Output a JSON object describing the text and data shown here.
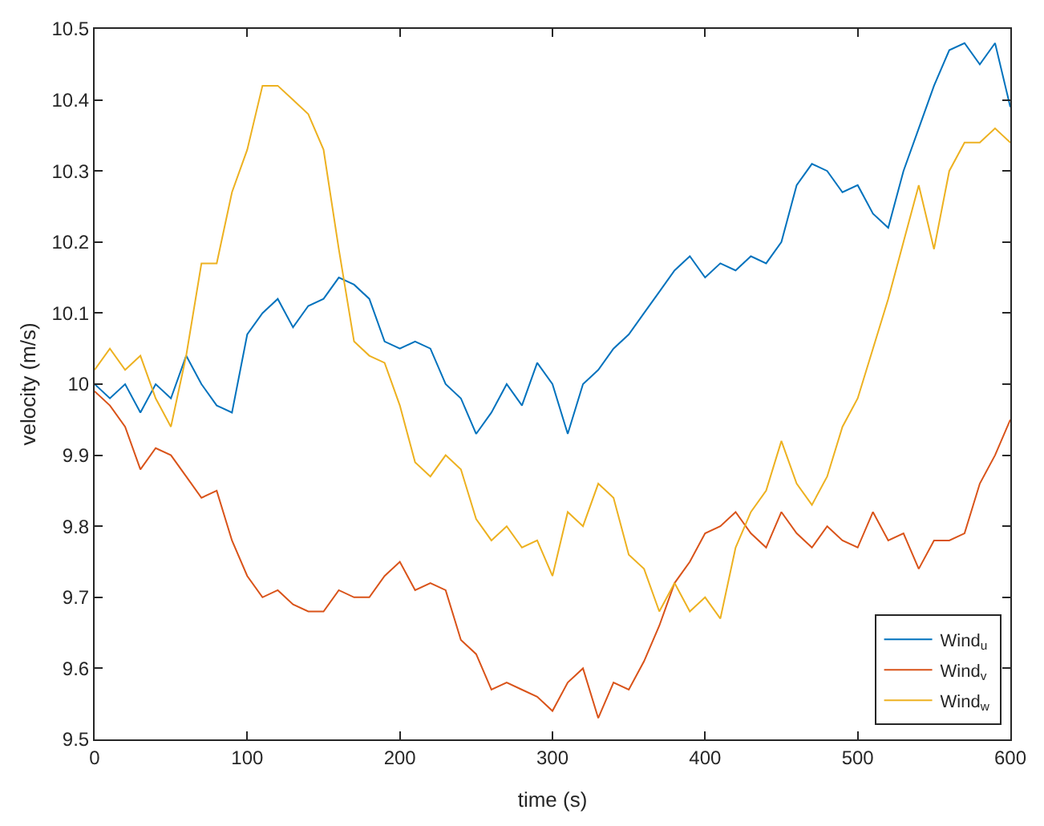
{
  "chart_data": {
    "type": "line",
    "xlabel": "time (s)",
    "ylabel": "velocity (m/s)",
    "x": [
      0,
      10,
      20,
      30,
      40,
      50,
      60,
      70,
      80,
      90,
      100,
      110,
      120,
      130,
      140,
      150,
      160,
      170,
      180,
      190,
      200,
      210,
      220,
      230,
      240,
      250,
      260,
      270,
      280,
      290,
      300,
      310,
      320,
      330,
      340,
      350,
      360,
      370,
      380,
      390,
      400,
      410,
      420,
      430,
      440,
      450,
      460,
      470,
      480,
      490,
      500,
      510,
      520,
      530,
      540,
      550,
      560,
      570,
      580,
      590,
      600
    ],
    "series": [
      {
        "name": "Wind$_{u}$",
        "color": "#0072bd",
        "values": [
          10.0,
          9.98,
          10.0,
          9.96,
          10.0,
          9.98,
          10.04,
          10.0,
          9.97,
          9.96,
          10.07,
          10.1,
          10.12,
          10.08,
          10.11,
          10.12,
          10.15,
          10.14,
          10.12,
          10.06,
          10.05,
          10.06,
          10.05,
          10.0,
          9.98,
          9.93,
          9.96,
          10.0,
          9.97,
          10.03,
          10.0,
          9.93,
          10.0,
          10.02,
          10.05,
          10.07,
          10.1,
          10.13,
          10.16,
          10.18,
          10.15,
          10.17,
          10.16,
          10.18,
          10.17,
          10.2,
          10.28,
          10.31,
          10.3,
          10.27,
          10.28,
          10.24,
          10.22,
          10.3,
          10.36,
          10.42,
          10.47,
          10.48,
          10.45,
          10.48,
          10.39
        ]
      },
      {
        "name": "Wind$_{v}$",
        "color": "#d95319",
        "values": [
          9.99,
          9.97,
          9.94,
          9.88,
          9.91,
          9.9,
          9.87,
          9.84,
          9.85,
          9.78,
          9.73,
          9.7,
          9.71,
          9.69,
          9.68,
          9.68,
          9.71,
          9.7,
          9.7,
          9.73,
          9.75,
          9.71,
          9.72,
          9.71,
          9.64,
          9.62,
          9.57,
          9.58,
          9.57,
          9.56,
          9.54,
          9.58,
          9.6,
          9.53,
          9.58,
          9.57,
          9.61,
          9.66,
          9.72,
          9.75,
          9.79,
          9.8,
          9.82,
          9.79,
          9.77,
          9.82,
          9.79,
          9.77,
          9.8,
          9.78,
          9.77,
          9.82,
          9.78,
          9.79,
          9.74,
          9.78,
          9.78,
          9.79,
          9.86,
          9.9,
          9.95
        ]
      },
      {
        "name": "Wind$_{w}$",
        "color": "#edb120",
        "values": [
          10.02,
          10.05,
          10.02,
          10.04,
          9.98,
          9.94,
          10.04,
          10.17,
          10.17,
          10.27,
          10.33,
          10.42,
          10.42,
          10.4,
          10.38,
          10.33,
          10.19,
          10.06,
          10.04,
          10.03,
          9.97,
          9.89,
          9.87,
          9.9,
          9.88,
          9.81,
          9.78,
          9.8,
          9.77,
          9.78,
          9.73,
          9.82,
          9.8,
          9.86,
          9.84,
          9.76,
          9.74,
          9.68,
          9.72,
          9.68,
          9.7,
          9.67,
          9.77,
          9.82,
          9.85,
          9.92,
          9.86,
          9.83,
          9.87,
          9.94,
          9.98,
          10.05,
          10.12,
          10.2,
          10.28,
          10.19,
          10.3,
          10.34,
          10.34,
          10.36,
          10.34
        ]
      }
    ],
    "xlim": [
      0,
      600
    ],
    "xticks": [
      0,
      100,
      200,
      300,
      400,
      500,
      600
    ],
    "ylim": [
      9.5,
      10.5
    ],
    "yticks": [
      9.5,
      9.6,
      9.7,
      9.8,
      9.9,
      10,
      10.1,
      10.2,
      10.3,
      10.4,
      10.5
    ],
    "legend": "bottom right",
    "marker": "none",
    "line_style": "solid"
  }
}
